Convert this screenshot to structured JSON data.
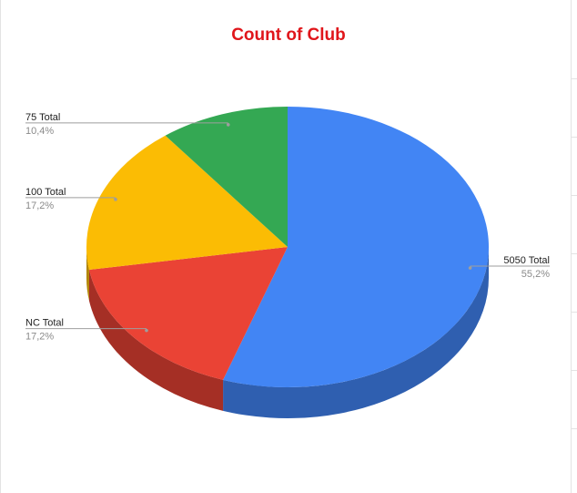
{
  "chart_data": {
    "type": "pie",
    "three_d": true,
    "title": "Count of Club",
    "title_color": "#e0161b",
    "slices": [
      {
        "label": "5050 Total",
        "percent_label": "55,2%",
        "value": 55.2,
        "color": "#4285f4",
        "side_color": "#2f5fb0"
      },
      {
        "label": "NC Total",
        "percent_label": "17,2%",
        "value": 17.2,
        "color": "#ea4335",
        "side_color": "#a52f25"
      },
      {
        "label": "100 Total",
        "percent_label": "17,2%",
        "value": 17.2,
        "color": "#fbbc04",
        "side_color": "#b28503"
      },
      {
        "label": "75 Total",
        "percent_label": "10,4%",
        "value": 10.4,
        "color": "#34a853",
        "side_color": "#247638"
      }
    ],
    "legend": "none"
  }
}
